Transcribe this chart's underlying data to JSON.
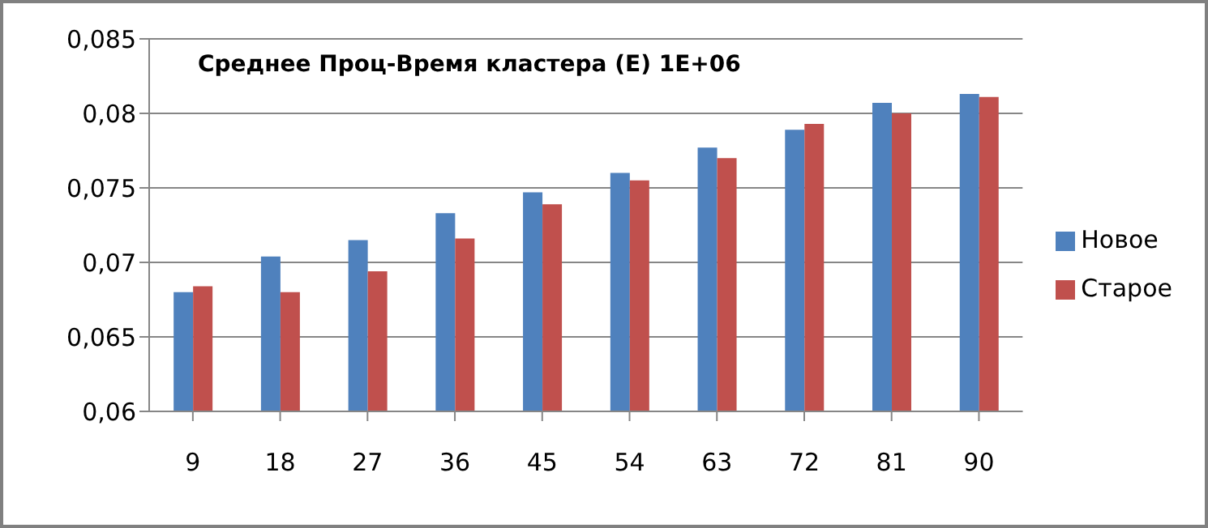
{
  "chart_data": {
    "type": "bar",
    "title": "Среднее Проц-Время кластера (E) 1E+06",
    "categories": [
      "9",
      "18",
      "27",
      "36",
      "45",
      "54",
      "63",
      "72",
      "81",
      "90"
    ],
    "series": [
      {
        "name": "Новое",
        "color": "#4f81bd",
        "values": [
          0.068,
          0.0704,
          0.0715,
          0.0733,
          0.0747,
          0.076,
          0.0777,
          0.0789,
          0.0807,
          0.0813
        ]
      },
      {
        "name": "Старое",
        "color": "#c0504d",
        "values": [
          0.0684,
          0.068,
          0.0694,
          0.0716,
          0.0739,
          0.0755,
          0.077,
          0.0793,
          0.08,
          0.0811
        ]
      }
    ],
    "ylim": [
      0.06,
      0.085
    ],
    "yticks": [
      {
        "value": 0.06,
        "label": "0,06"
      },
      {
        "value": 0.065,
        "label": "0,065"
      },
      {
        "value": 0.07,
        "label": "0,07"
      },
      {
        "value": 0.075,
        "label": "0,075"
      },
      {
        "value": 0.08,
        "label": "0,08"
      },
      {
        "value": 0.085,
        "label": "0,085"
      }
    ],
    "grid": "y",
    "legend": "right"
  }
}
